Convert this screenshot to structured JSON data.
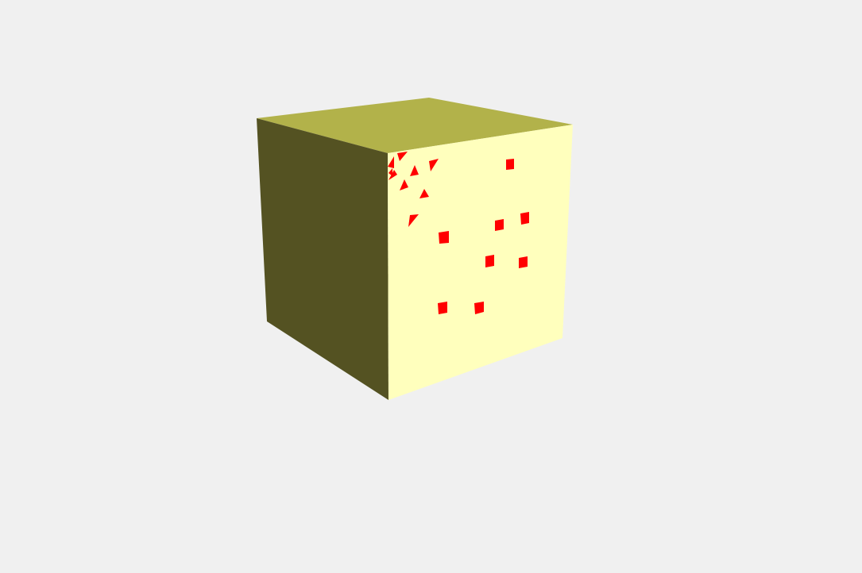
{
  "scene": {
    "background_color": "#f0f0f0",
    "object": "cube",
    "faces": {
      "top": {
        "color": "#b2b24a"
      },
      "left": {
        "color": "#545222"
      },
      "front": {
        "color": "#ffffbd"
      }
    },
    "marker_color": "#ff0000",
    "marker_count": 17
  }
}
